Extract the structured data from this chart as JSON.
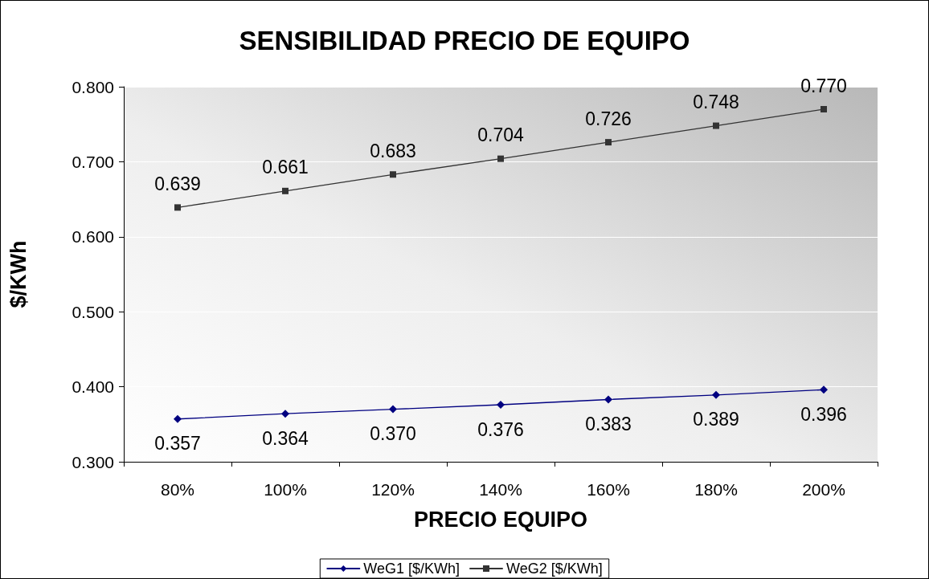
{
  "chart_data": {
    "type": "line",
    "title": "SENSIBILIDAD PRECIO DE EQUIPO",
    "xlabel": "PRECIO EQUIPO",
    "ylabel": "$/KWh",
    "categories": [
      "80%",
      "100%",
      "120%",
      "140%",
      "160%",
      "180%",
      "200%"
    ],
    "series": [
      {
        "name": "WeG1 [$/KWh]",
        "color": "#000080",
        "marker": "diamond",
        "values": [
          0.357,
          0.364,
          0.37,
          0.376,
          0.383,
          0.389,
          0.396
        ],
        "value_labels": [
          "0.357",
          "0.364",
          "0.370",
          "0.376",
          "0.383",
          "0.389",
          "0.396"
        ]
      },
      {
        "name": "WeG2 [$/KWh]",
        "color": "#333333",
        "marker": "square",
        "values": [
          0.639,
          0.661,
          0.683,
          0.704,
          0.726,
          0.748,
          0.77
        ],
        "value_labels": [
          "0.639",
          "0.661",
          "0.683",
          "0.704",
          "0.726",
          "0.748",
          "0.770"
        ]
      }
    ],
    "ylim": [
      0.3,
      0.8
    ],
    "yticks": [
      {
        "value": 0.3,
        "label": "0.300"
      },
      {
        "value": 0.4,
        "label": "0.400"
      },
      {
        "value": 0.5,
        "label": "0.500"
      },
      {
        "value": 0.6,
        "label": "0.600"
      },
      {
        "value": 0.7,
        "label": "0.700"
      },
      {
        "value": 0.8,
        "label": "0.800"
      }
    ],
    "grid": "y",
    "legend": "bottom",
    "line_style": "solid"
  }
}
